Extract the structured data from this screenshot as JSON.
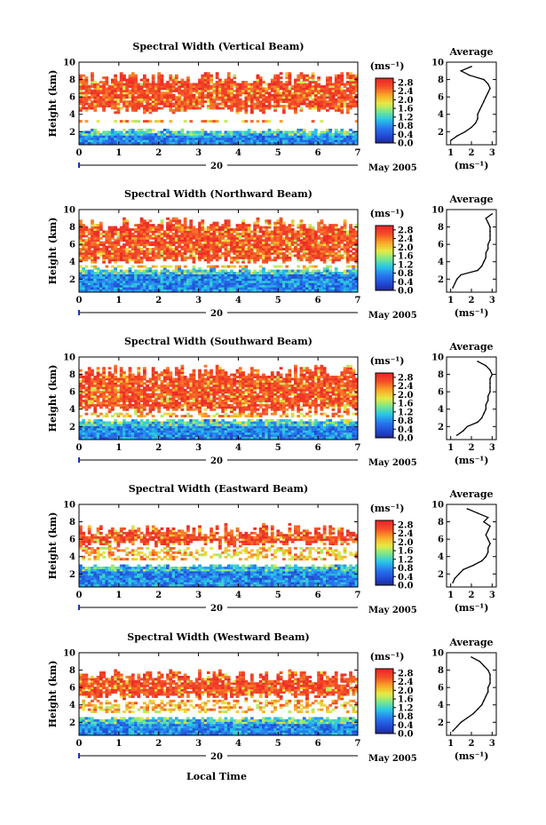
{
  "figure": {
    "xlabel": "Local Time",
    "date_day": "20",
    "date_month": "May 2005",
    "unit_label": "(ms⁻¹)"
  },
  "chart_data": [
    {
      "type": "heatmap",
      "title": "Spectral Width (Vertical Beam)",
      "ylabel": "Height (km)",
      "xlim": [
        0,
        7
      ],
      "ylim": [
        0.5,
        10
      ],
      "x_ticks": [
        "0",
        "1",
        "2",
        "3",
        "4",
        "5",
        "6",
        "7"
      ],
      "y_ticks": [
        "2",
        "4",
        "6",
        "8",
        "10"
      ],
      "colorbar": {
        "unit": "(ms⁻¹)",
        "ticks": [
          "0.0",
          "0.4",
          "0.8",
          "1.2",
          "1.6",
          "2.0",
          "2.4",
          "2.8"
        ],
        "range": [
          0,
          3
        ]
      },
      "profile": {
        "title": "Average",
        "xlabel": "(ms⁻¹)",
        "x_ticks": [
          "1",
          "2",
          "3"
        ],
        "xlim": [
          0.8,
          3.2
        ],
        "heights": [
          1.0,
          1.5,
          2.0,
          2.5,
          3.0,
          3.5,
          4.0,
          4.5,
          5.0,
          5.5,
          6.0,
          6.5,
          7.0,
          7.5,
          8.0,
          8.5,
          9.0,
          9.5
        ],
        "values": [
          1.0,
          1.3,
          1.7,
          2.0,
          2.2,
          2.3,
          2.3,
          2.4,
          2.5,
          2.6,
          2.7,
          2.8,
          2.9,
          2.8,
          2.6,
          1.9,
          1.5,
          2.0
        ]
      }
    },
    {
      "type": "heatmap",
      "title": "Spectral Width (Northward Beam)",
      "ylabel": "Height (km)",
      "xlim": [
        0,
        7
      ],
      "ylim": [
        0.5,
        10
      ],
      "x_ticks": [
        "0",
        "1",
        "2",
        "3",
        "4",
        "5",
        "6",
        "7"
      ],
      "y_ticks": [
        "2",
        "4",
        "6",
        "8",
        "10"
      ],
      "colorbar": {
        "unit": "(ms⁻¹)",
        "ticks": [
          "0.0",
          "0.4",
          "0.8",
          "1.2",
          "1.6",
          "2.0",
          "2.4",
          "2.8"
        ],
        "range": [
          0,
          3
        ]
      },
      "profile": {
        "title": "Average",
        "xlabel": "(ms⁻¹)",
        "x_ticks": [
          "1",
          "2",
          "3"
        ],
        "xlim": [
          0.8,
          3.2
        ],
        "heights": [
          1.0,
          1.5,
          2.0,
          2.5,
          3.0,
          3.5,
          4.0,
          4.5,
          5.0,
          5.5,
          6.0,
          6.5,
          7.0,
          7.5,
          8.0,
          8.5,
          9.0,
          9.5
        ],
        "values": [
          1.1,
          1.2,
          1.3,
          1.5,
          2.3,
          2.5,
          2.6,
          2.7,
          2.7,
          2.8,
          2.8,
          2.9,
          2.9,
          2.9,
          2.9,
          2.8,
          2.7,
          3.0
        ]
      }
    },
    {
      "type": "heatmap",
      "title": "Spectral Width (Southward Beam)",
      "ylabel": "Height (km)",
      "xlim": [
        0,
        7
      ],
      "ylim": [
        0.5,
        10
      ],
      "x_ticks": [
        "0",
        "1",
        "2",
        "3",
        "4",
        "5",
        "6",
        "7"
      ],
      "y_ticks": [
        "2",
        "4",
        "6",
        "8",
        "10"
      ],
      "colorbar": {
        "unit": "(ms⁻¹)",
        "ticks": [
          "0.0",
          "0.4",
          "0.8",
          "1.2",
          "1.6",
          "2.0",
          "2.4",
          "2.8"
        ],
        "range": [
          0,
          3
        ]
      },
      "profile": {
        "title": "Average",
        "xlabel": "(ms⁻¹)",
        "x_ticks": [
          "1",
          "2",
          "3"
        ],
        "xlim": [
          0.8,
          3.2
        ],
        "heights": [
          1.0,
          1.5,
          2.0,
          2.5,
          3.0,
          3.5,
          4.0,
          4.5,
          5.0,
          5.5,
          6.0,
          6.5,
          7.0,
          7.5,
          8.0,
          8.5,
          9.0,
          9.5
        ],
        "values": [
          1.3,
          1.6,
          1.8,
          2.3,
          2.5,
          2.6,
          2.7,
          2.7,
          2.8,
          2.8,
          2.9,
          2.9,
          2.9,
          2.9,
          3.0,
          2.9,
          2.7,
          2.3
        ]
      }
    },
    {
      "type": "heatmap",
      "title": "Spectral Width (Eastward Beam)",
      "ylabel": "Height (km)",
      "xlim": [
        0,
        7
      ],
      "ylim": [
        0.5,
        10
      ],
      "x_ticks": [
        "0",
        "1",
        "2",
        "3",
        "4",
        "5",
        "6",
        "7"
      ],
      "y_ticks": [
        "2",
        "4",
        "6",
        "8",
        "10"
      ],
      "colorbar": {
        "unit": "(ms⁻¹)",
        "ticks": [
          "0.0",
          "0.4",
          "0.8",
          "1.2",
          "1.6",
          "2.0",
          "2.4",
          "2.8"
        ],
        "range": [
          0,
          3
        ]
      },
      "profile": {
        "title": "Average",
        "xlabel": "(ms⁻¹)",
        "x_ticks": [
          "1",
          "2",
          "3"
        ],
        "xlim": [
          0.8,
          3.2
        ],
        "heights": [
          1.0,
          1.5,
          2.0,
          2.5,
          3.0,
          3.5,
          4.0,
          4.5,
          5.0,
          5.5,
          6.0,
          6.5,
          7.0,
          7.5,
          8.0,
          8.5,
          9.0,
          9.5
        ],
        "values": [
          1.1,
          1.2,
          1.4,
          1.6,
          2.1,
          2.5,
          2.7,
          2.8,
          2.8,
          2.9,
          2.8,
          2.7,
          2.8,
          2.9,
          2.6,
          2.8,
          2.3,
          1.8
        ]
      }
    },
    {
      "type": "heatmap",
      "title": "Spectral Width (Westward Beam)",
      "ylabel": "Height (km)",
      "xlim": [
        0,
        7
      ],
      "ylim": [
        0.5,
        10
      ],
      "x_ticks": [
        "0",
        "1",
        "2",
        "3",
        "4",
        "5",
        "6",
        "7"
      ],
      "y_ticks": [
        "2",
        "4",
        "6",
        "8",
        "10"
      ],
      "colorbar": {
        "unit": "(ms⁻¹)",
        "ticks": [
          "0.0",
          "0.4",
          "0.8",
          "1.2",
          "1.6",
          "2.0",
          "2.4",
          "2.8"
        ],
        "range": [
          0,
          3
        ]
      },
      "profile": {
        "title": "Average",
        "xlabel": "(ms⁻¹)",
        "x_ticks": [
          "1",
          "2",
          "3"
        ],
        "xlim": [
          0.8,
          3.2
        ],
        "heights": [
          1.0,
          1.5,
          2.0,
          2.5,
          3.0,
          3.5,
          4.0,
          4.5,
          5.0,
          5.5,
          6.0,
          6.5,
          7.0,
          7.5,
          8.0,
          8.5,
          9.0,
          9.5
        ],
        "values": [
          1.1,
          1.3,
          1.5,
          1.8,
          2.1,
          2.3,
          2.5,
          2.6,
          2.7,
          2.8,
          2.8,
          2.9,
          2.9,
          2.9,
          2.8,
          2.6,
          2.4,
          2.0
        ]
      }
    }
  ]
}
